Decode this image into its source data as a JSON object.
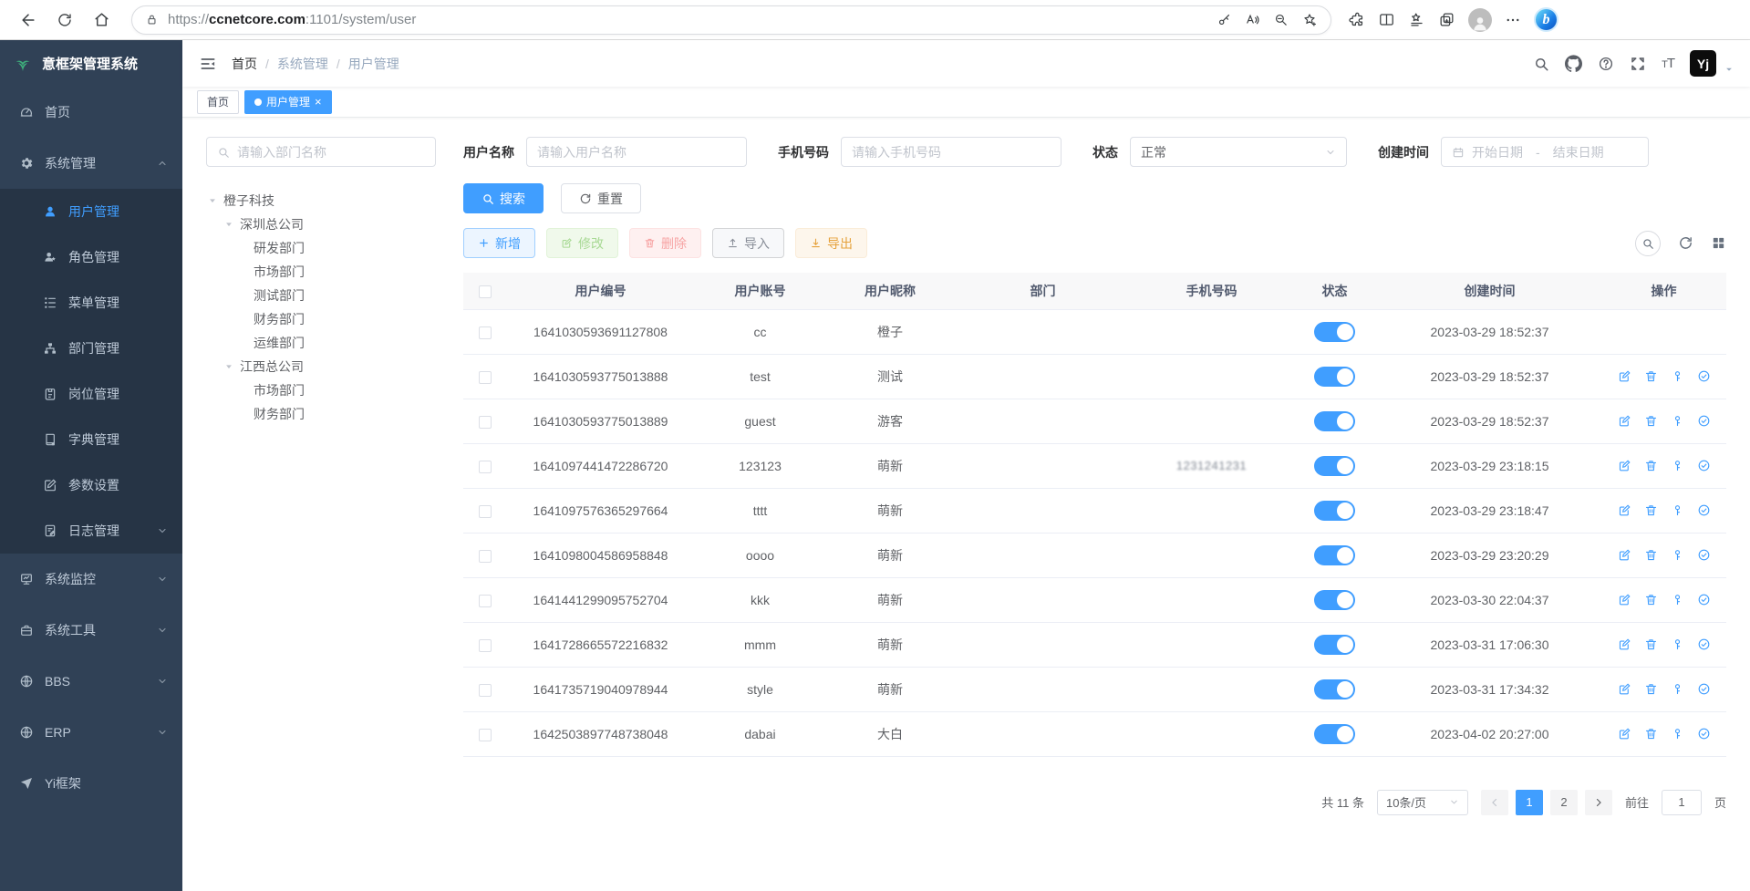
{
  "browser": {
    "url_scheme": "https://",
    "url_host": "ccnetcore.com",
    "url_rest": ":1101/system/user"
  },
  "sidebar": {
    "logo": "意框架管理系统",
    "items": [
      {
        "label": "首页"
      },
      {
        "label": "系统管理"
      },
      {
        "label": "用户管理"
      },
      {
        "label": "角色管理"
      },
      {
        "label": "菜单管理"
      },
      {
        "label": "部门管理"
      },
      {
        "label": "岗位管理"
      },
      {
        "label": "字典管理"
      },
      {
        "label": "参数设置"
      },
      {
        "label": "日志管理"
      },
      {
        "label": "系统监控"
      },
      {
        "label": "系统工具"
      },
      {
        "label": "BBS"
      },
      {
        "label": "ERP"
      },
      {
        "label": "Yi框架"
      }
    ]
  },
  "breadcrumb": {
    "items": [
      "首页",
      "系统管理",
      "用户管理"
    ],
    "separator": "/"
  },
  "tabs": {
    "home": "首页",
    "active": "用户管理",
    "close": "×"
  },
  "filters": {
    "dept_placeholder": "请输入部门名称",
    "username_label": "用户名称",
    "username_placeholder": "请输入用户名称",
    "phone_label": "手机号码",
    "phone_placeholder": "请输入手机号码",
    "status_label": "状态",
    "status_value": "正常",
    "created_label": "创建时间",
    "date_start": "开始日期",
    "date_separator": "-",
    "date_end": "结束日期",
    "search_label": "搜索",
    "reset_label": "重置"
  },
  "tree": {
    "nodes": [
      {
        "label": "橙子科技",
        "pad": 2,
        "caret": true
      },
      {
        "label": "深圳总公司",
        "pad": 20,
        "caret": true
      },
      {
        "label": "研发部门",
        "pad": 52,
        "caret": false
      },
      {
        "label": "市场部门",
        "pad": 52,
        "caret": false
      },
      {
        "label": "测试部门",
        "pad": 52,
        "caret": false
      },
      {
        "label": "财务部门",
        "pad": 52,
        "caret": false
      },
      {
        "label": "运维部门",
        "pad": 52,
        "caret": false
      },
      {
        "label": "江西总公司",
        "pad": 20,
        "caret": true
      },
      {
        "label": "市场部门",
        "pad": 52,
        "caret": false
      },
      {
        "label": "财务部门",
        "pad": 52,
        "caret": false
      }
    ]
  },
  "toolbar": {
    "add": "新增",
    "edit": "修改",
    "delete": "删除",
    "import": "导入",
    "export": "导出"
  },
  "table": {
    "columns": [
      "用户编号",
      "用户账号",
      "用户昵称",
      "部门",
      "手机号码",
      "状态",
      "创建时间",
      "操作"
    ],
    "rows": [
      {
        "id": "1641030593691127808",
        "account": "cc",
        "nickname": "橙子",
        "dept": "",
        "phone_visible": "",
        "mask_w": 96,
        "status_on": true,
        "created": "2023-03-29 18:52:37",
        "has_ops": false
      },
      {
        "id": "1641030593775013888",
        "account": "test",
        "nickname": "测试",
        "dept": "",
        "phone_visible": "",
        "mask_w": 100,
        "status_on": true,
        "created": "2023-03-29 18:52:37",
        "has_ops": true
      },
      {
        "id": "1641030593775013889",
        "account": "guest",
        "nickname": "游客",
        "dept": "",
        "phone_visible": "",
        "mask_w": 95,
        "status_on": true,
        "created": "2023-03-29 18:52:37",
        "has_ops": true
      },
      {
        "id": "1641097441472286720",
        "account": "123123",
        "nickname": "萌新",
        "dept": "",
        "phone_visible": "1231241231",
        "mask_w": 88,
        "status_on": true,
        "created": "2023-03-29 23:18:15",
        "has_ops": true
      },
      {
        "id": "1641097576365297664",
        "account": "tttt",
        "nickname": "萌新",
        "dept": "",
        "phone_visible": "",
        "mask_w": 30,
        "status_on": true,
        "created": "2023-03-29 23:18:47",
        "has_ops": true
      },
      {
        "id": "1641098004586958848",
        "account": "oooo",
        "nickname": "萌新",
        "dept": "",
        "phone_visible": "",
        "mask_w": 62,
        "status_on": true,
        "created": "2023-03-29 23:20:29",
        "has_ops": true
      },
      {
        "id": "1641441299095752704",
        "account": "kkk",
        "nickname": "萌新",
        "dept": "",
        "phone_visible": "",
        "mask_w": 92,
        "status_on": true,
        "created": "2023-03-30 22:04:37",
        "has_ops": true
      },
      {
        "id": "1641728665572216832",
        "account": "mmm",
        "nickname": "萌新",
        "dept": "",
        "phone_visible": "",
        "mask_w": 98,
        "status_on": true,
        "created": "2023-03-31 17:06:30",
        "has_ops": true
      },
      {
        "id": "1641735719040978944",
        "account": "style",
        "nickname": "萌新",
        "dept": "",
        "phone_visible": "",
        "mask_w": 90,
        "status_on": true,
        "created": "2023-03-31 17:34:32",
        "has_ops": true
      },
      {
        "id": "1642503897748738048",
        "account": "dabai",
        "nickname": "大白",
        "dept": "",
        "phone_visible": "",
        "mask_w": 88,
        "status_on": true,
        "created": "2023-04-02 20:27:00",
        "has_ops": true
      }
    ]
  },
  "pagination": {
    "total": "共 11 条",
    "page_size": "10条/页",
    "page1": "1",
    "page2": "2",
    "goto_label": "前往",
    "goto_value": "1",
    "page_unit": "页"
  },
  "colors": {
    "accent": "#409eff",
    "sidebar_bg": "#304156",
    "submenu_bg": "#263445",
    "success": "#67c23a",
    "danger": "#f56c6c",
    "warning": "#e6a23c"
  }
}
